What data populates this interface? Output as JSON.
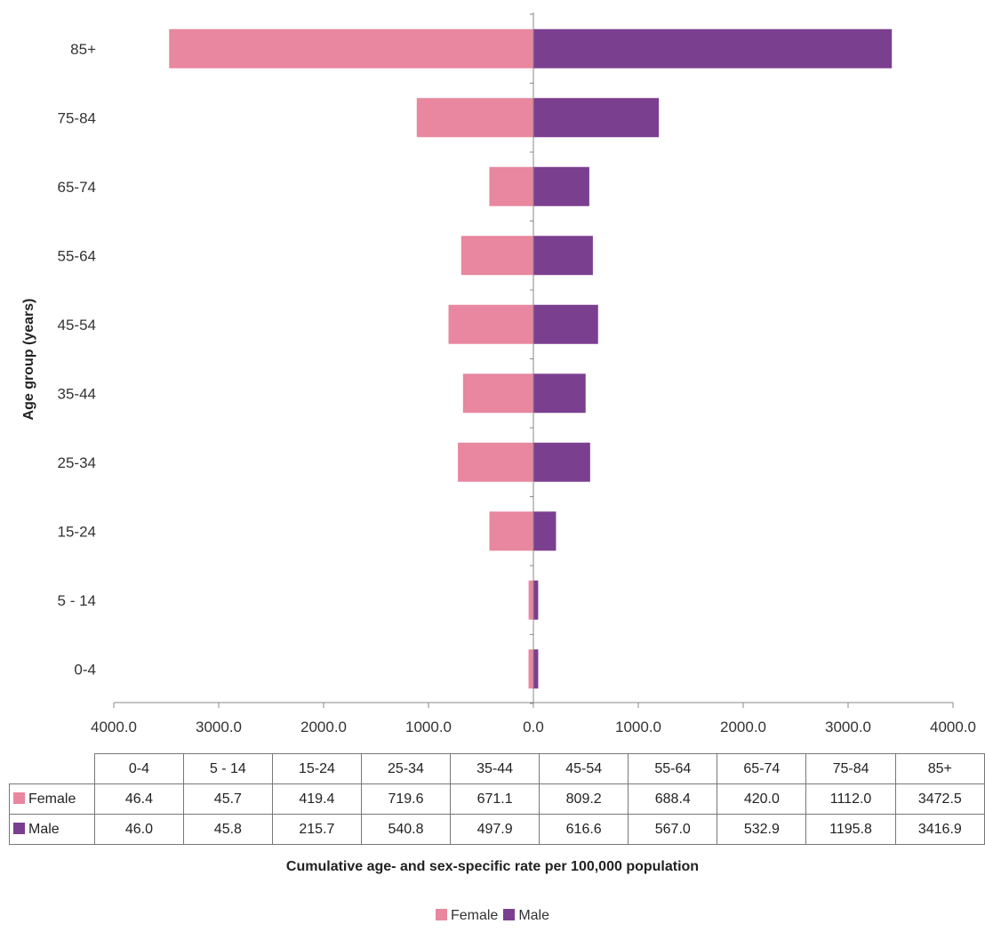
{
  "chart_data": {
    "type": "bar",
    "orientation": "horizontal-population-pyramid",
    "ylabel": "Age group (years)",
    "xlabel": "Cumulative age- and sex-specific rate per 100,000 population",
    "categories": [
      "0-4",
      "5 - 14",
      "15-24",
      "25-34",
      "35-44",
      "45-54",
      "55-64",
      "65-74",
      "75-84",
      "85+"
    ],
    "series": [
      {
        "name": "Female",
        "side": "left",
        "color": "#e8879f",
        "values": [
          46.4,
          45.7,
          419.4,
          719.6,
          671.1,
          809.2,
          688.4,
          420.0,
          1112.0,
          3472.5
        ],
        "labels": [
          "46.4",
          "45.7",
          "419.4",
          "719.6",
          "671.1",
          "809.2",
          "688.4",
          "420.0",
          "1112.0",
          "3472.5"
        ]
      },
      {
        "name": "Male",
        "side": "right",
        "color": "#7b3f8f",
        "values": [
          46.0,
          45.8,
          215.7,
          540.8,
          497.9,
          616.6,
          567.0,
          532.9,
          1195.8,
          3416.9
        ],
        "labels": [
          "46.0",
          "45.8",
          "215.7",
          "540.8",
          "497.9",
          "616.6",
          "567.0",
          "532.9",
          "1195.8",
          "3416.9"
        ]
      }
    ],
    "xlim": [
      -4000,
      4000
    ],
    "xticks": [
      -4000,
      -3000,
      -2000,
      -1000,
      0,
      1000,
      2000,
      3000,
      4000
    ],
    "xtick_labels": [
      "4000.0",
      "3000.0",
      "2000.0",
      "1000.0",
      "0.0",
      "1000.0",
      "2000.0",
      "3000.0",
      "4000.0"
    ],
    "grid": false,
    "legend": "bottom-center",
    "data_table": true
  }
}
